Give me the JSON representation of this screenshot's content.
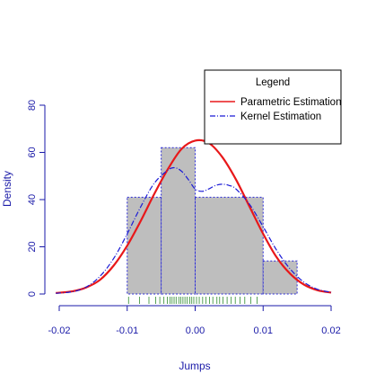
{
  "chart_data": {
    "type": "histogram",
    "title": "",
    "xlabel": "Jumps",
    "ylabel": "Density",
    "xlim": [
      -0.02,
      0.02
    ],
    "ylim": [
      0,
      80
    ],
    "x_ticks": [
      "-0.02",
      "-0.01",
      "0.00",
      "0.01",
      "0.02"
    ],
    "y_ticks": [
      "0",
      "20",
      "40",
      "60",
      "80"
    ],
    "x_tick_values": [
      -0.02,
      -0.01,
      0.0,
      0.01,
      0.02
    ],
    "y_tick_values": [
      0,
      20,
      40,
      60,
      80
    ],
    "bins": [
      {
        "from": -0.01,
        "to": -0.005,
        "density": 41
      },
      {
        "from": -0.005,
        "to": 0.0,
        "density": 62
      },
      {
        "from": 0.0,
        "to": 0.01,
        "density": 41
      },
      {
        "from": 0.01,
        "to": 0.015,
        "density": 14
      }
    ],
    "series": [
      {
        "name": "Parametric Estimation",
        "style": "solid",
        "color": "#e8181a",
        "x": [
          -0.0205,
          -0.018,
          -0.016,
          -0.014,
          -0.012,
          -0.01,
          -0.008,
          -0.006,
          -0.004,
          -0.002,
          0.0,
          0.002,
          0.004,
          0.006,
          0.008,
          0.01,
          0.012,
          0.014,
          0.016,
          0.018,
          0.02
        ],
        "values": [
          0.4,
          1.2,
          2.8,
          6,
          12,
          20.5,
          31,
          42.5,
          53,
          61.5,
          65,
          64,
          58,
          48.5,
          37,
          25.5,
          15.5,
          8.5,
          4,
          1.6,
          0.6
        ]
      },
      {
        "name": "Kernel Estimation",
        "style": "dash-dot",
        "color": "#1b1bd6",
        "x": [
          -0.0205,
          -0.018,
          -0.016,
          -0.014,
          -0.012,
          -0.01,
          -0.008,
          -0.006,
          -0.004,
          -0.003,
          -0.002,
          -0.001,
          0.0,
          0.001,
          0.002,
          0.003,
          0.004,
          0.005,
          0.006,
          0.008,
          0.01,
          0.012,
          0.014,
          0.016,
          0.018,
          0.02
        ],
        "values": [
          0.3,
          1,
          3,
          7.5,
          15,
          25.5,
          37,
          47,
          52.5,
          53.5,
          52,
          48.5,
          44.5,
          43.5,
          44.5,
          46,
          46.5,
          46,
          44.5,
          38,
          28.5,
          18.5,
          10.5,
          5,
          2,
          0.7
        ]
      }
    ],
    "rug": [
      -0.0098,
      -0.0082,
      -0.0068,
      -0.0058,
      -0.0052,
      -0.0046,
      -0.0041,
      -0.0037,
      -0.0034,
      -0.0031,
      -0.0028,
      -0.0024,
      -0.0021,
      -0.0018,
      -0.0015,
      -0.0012,
      -0.0008,
      -0.0005,
      -0.0002,
      0.0002,
      0.0006,
      0.0011,
      0.0016,
      0.0021,
      0.0026,
      0.0032,
      0.0036,
      0.0041,
      0.0047,
      0.0053,
      0.0059,
      0.0066,
      0.0073,
      0.0082,
      0.0091
    ],
    "legend": {
      "title": "Legend",
      "position": "top-right",
      "entries": [
        "Parametric Estimation",
        "Kernel Estimation"
      ]
    },
    "colors": {
      "bar_fill": "#bebebe",
      "bar_border": "#2b2bd8",
      "axis": "#1a1aa8",
      "rug": "#2e8b2e"
    },
    "grid": false
  }
}
